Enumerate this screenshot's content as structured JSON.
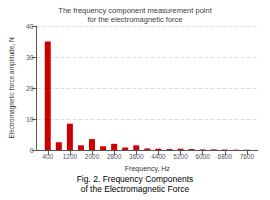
{
  "chart_data": {
    "type": "bar",
    "title": "Fig. 2. Frequency Components\nof the Electromagnetic Force",
    "annotation": "The frequency component measurement point\nfor the electromagnetic force",
    "x": [
      400,
      800,
      1200,
      1600,
      2000,
      2400,
      2800,
      3200,
      3600,
      4000,
      4400,
      4800,
      5200,
      5600,
      6000,
      6400,
      6800,
      7200,
      7600
    ],
    "values": [
      35,
      2.5,
      8.5,
      1.5,
      3.5,
      1.2,
      2.0,
      0.8,
      1.5,
      0.5,
      0.4,
      0.3,
      0.4,
      0.3,
      0.2,
      0.2,
      0.15,
      0.1,
      0.1
    ],
    "color": "#cc0000",
    "xlabel": "Frequency, Hz",
    "ylabel": "Electromagnetic force amplitude, N",
    "xlim": [
      0,
      8000
    ],
    "xticks": [
      400,
      1200,
      2000,
      2800,
      3600,
      4400,
      5200,
      6000,
      6800,
      7600
    ],
    "ylim": [
      0,
      40
    ],
    "yticks": [
      0,
      10,
      20,
      30,
      40
    ],
    "grid": true
  }
}
